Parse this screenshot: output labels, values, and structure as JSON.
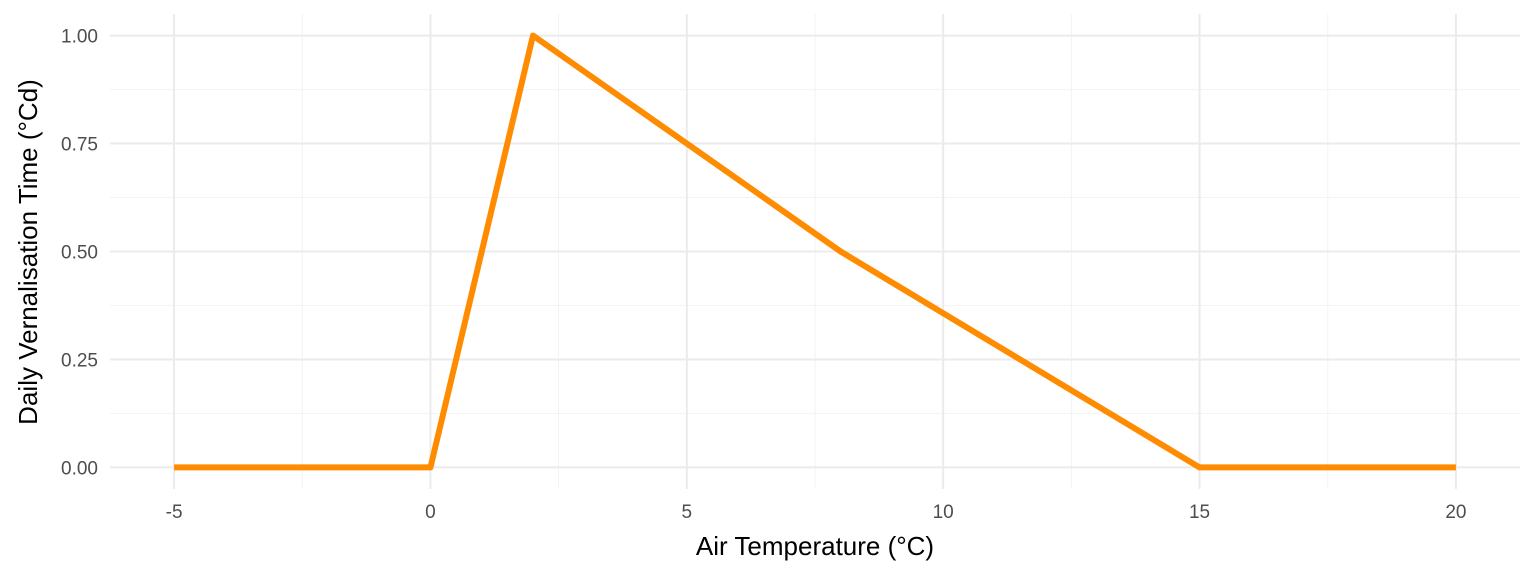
{
  "chart_data": {
    "type": "line",
    "title": "",
    "xlabel": "Air Temperature (°C)",
    "ylabel": "Daily Vernalisation Time (°Cd)",
    "xlim": [
      -6.25,
      21.25
    ],
    "ylim": [
      -0.05,
      1.05
    ],
    "x_ticks": [
      -5,
      0,
      5,
      10,
      15,
      20
    ],
    "x_tick_labels": [
      "-5",
      "0",
      "5",
      "10",
      "15",
      "20"
    ],
    "y_ticks": [
      0,
      0.25,
      0.5,
      0.75,
      1.0
    ],
    "y_tick_labels": [
      "0.00",
      "0.25",
      "0.50",
      "0.75",
      "1.00"
    ],
    "grid": true,
    "series": [
      {
        "color": "#ff8c00",
        "x": [
          -5,
          0,
          2,
          8,
          15,
          20
        ],
        "y": [
          0,
          0,
          1,
          0.5,
          0,
          0
        ]
      }
    ]
  }
}
